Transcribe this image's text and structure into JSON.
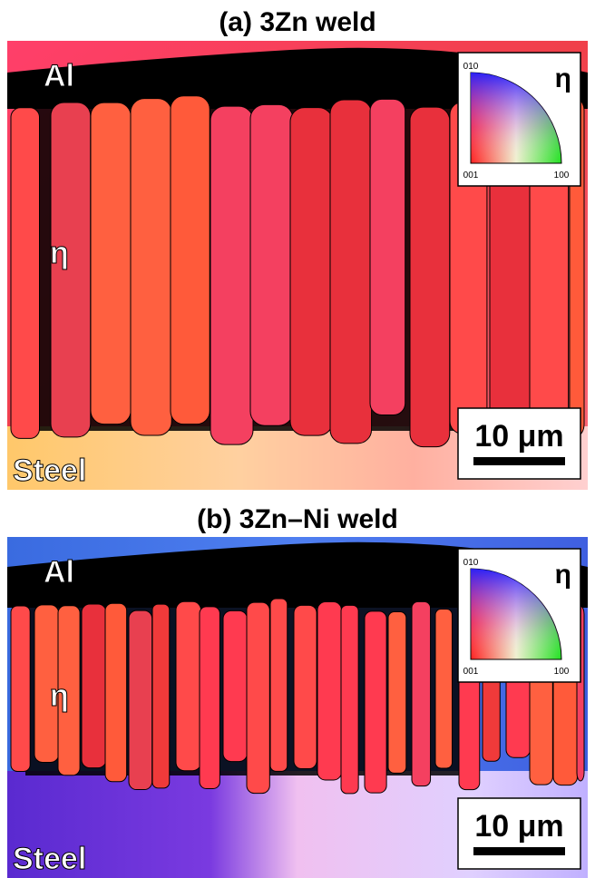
{
  "panels": [
    {
      "title": "(a) 3Zn weld",
      "labels": {
        "top": "Al",
        "middle": "η",
        "bottom": "Steel"
      },
      "legend": {
        "phase": "η",
        "corners": [
          "010",
          "001",
          "100"
        ]
      },
      "scale_bar": "10 μm"
    },
    {
      "title": "(b) 3Zn–Ni weld",
      "labels": {
        "top": "Al",
        "middle": "η",
        "bottom": "Steel"
      },
      "legend": {
        "phase": "η",
        "corners": [
          "010",
          "001",
          "100"
        ]
      },
      "scale_bar": "10 μm"
    }
  ]
}
